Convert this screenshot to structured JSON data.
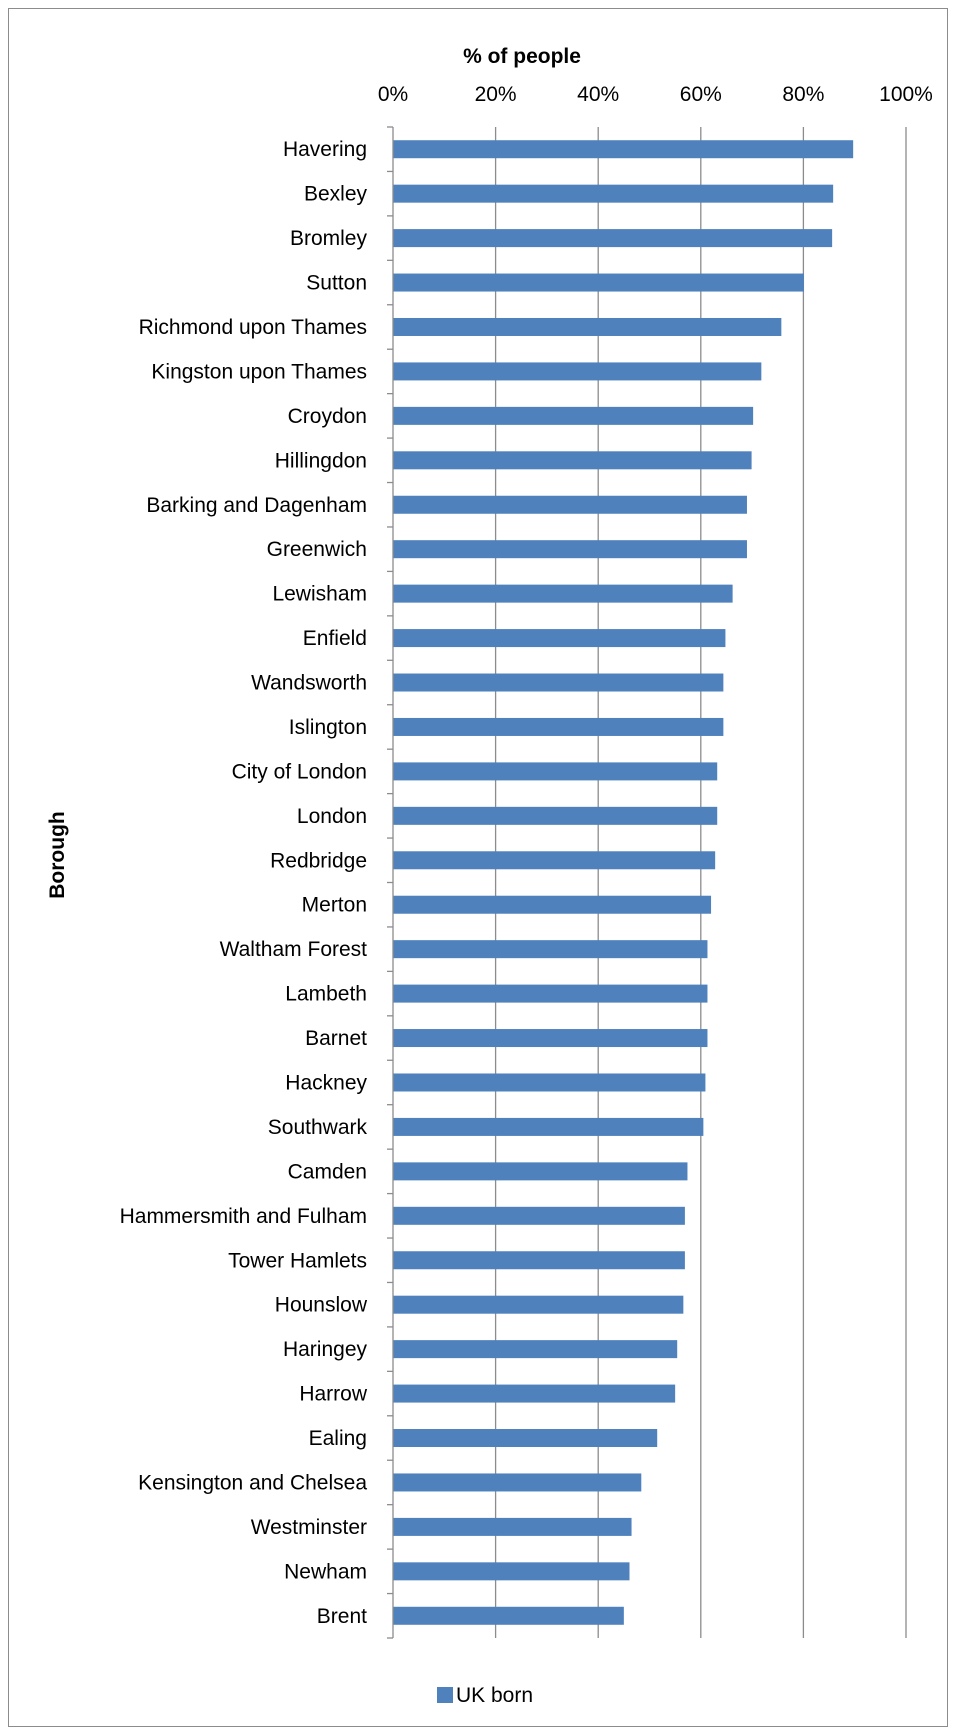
{
  "chart_data": {
    "type": "bar",
    "orientation": "horizontal",
    "xlabel": "% of people",
    "ylabel": "Borough",
    "xlim": [
      0,
      100
    ],
    "x_ticks": [
      0,
      20,
      40,
      60,
      80,
      100
    ],
    "x_tick_labels": [
      "0%",
      "20%",
      "40%",
      "60%",
      "80%",
      "100%"
    ],
    "grid": true,
    "legend_position": "bottom",
    "categories": [
      "Havering",
      "Bexley",
      "Bromley",
      "Sutton",
      "Richmond upon Thames",
      "Kingston upon Thames",
      "Croydon",
      "Hillingdon",
      "Barking and Dagenham",
      "Greenwich",
      "Lewisham",
      "Enfield",
      "Wandsworth",
      "Islington",
      "City of London",
      "London",
      "Redbridge",
      "Merton",
      "Waltham Forest",
      "Lambeth",
      "Barnet",
      "Hackney",
      "Southwark",
      "Camden",
      "Hammersmith  and Fulham",
      "Tower Hamlets",
      "Hounslow",
      "Haringey",
      "Harrow",
      "Ealing",
      "Kensington and Chelsea",
      "Westminster",
      "Newham",
      "Brent"
    ],
    "series": [
      {
        "name": "UK born",
        "color": "#4f81bd",
        "values": [
          89.7,
          85.8,
          85.6,
          80.1,
          75.7,
          71.8,
          70.2,
          69.9,
          69.0,
          69.0,
          66.2,
          64.8,
          64.4,
          64.4,
          63.2,
          63.2,
          62.8,
          62.0,
          61.3,
          61.3,
          61.3,
          60.9,
          60.5,
          57.4,
          56.9,
          56.9,
          56.6,
          55.4,
          55.0,
          51.5,
          48.4,
          46.5,
          46.1,
          45.0
        ]
      }
    ]
  }
}
